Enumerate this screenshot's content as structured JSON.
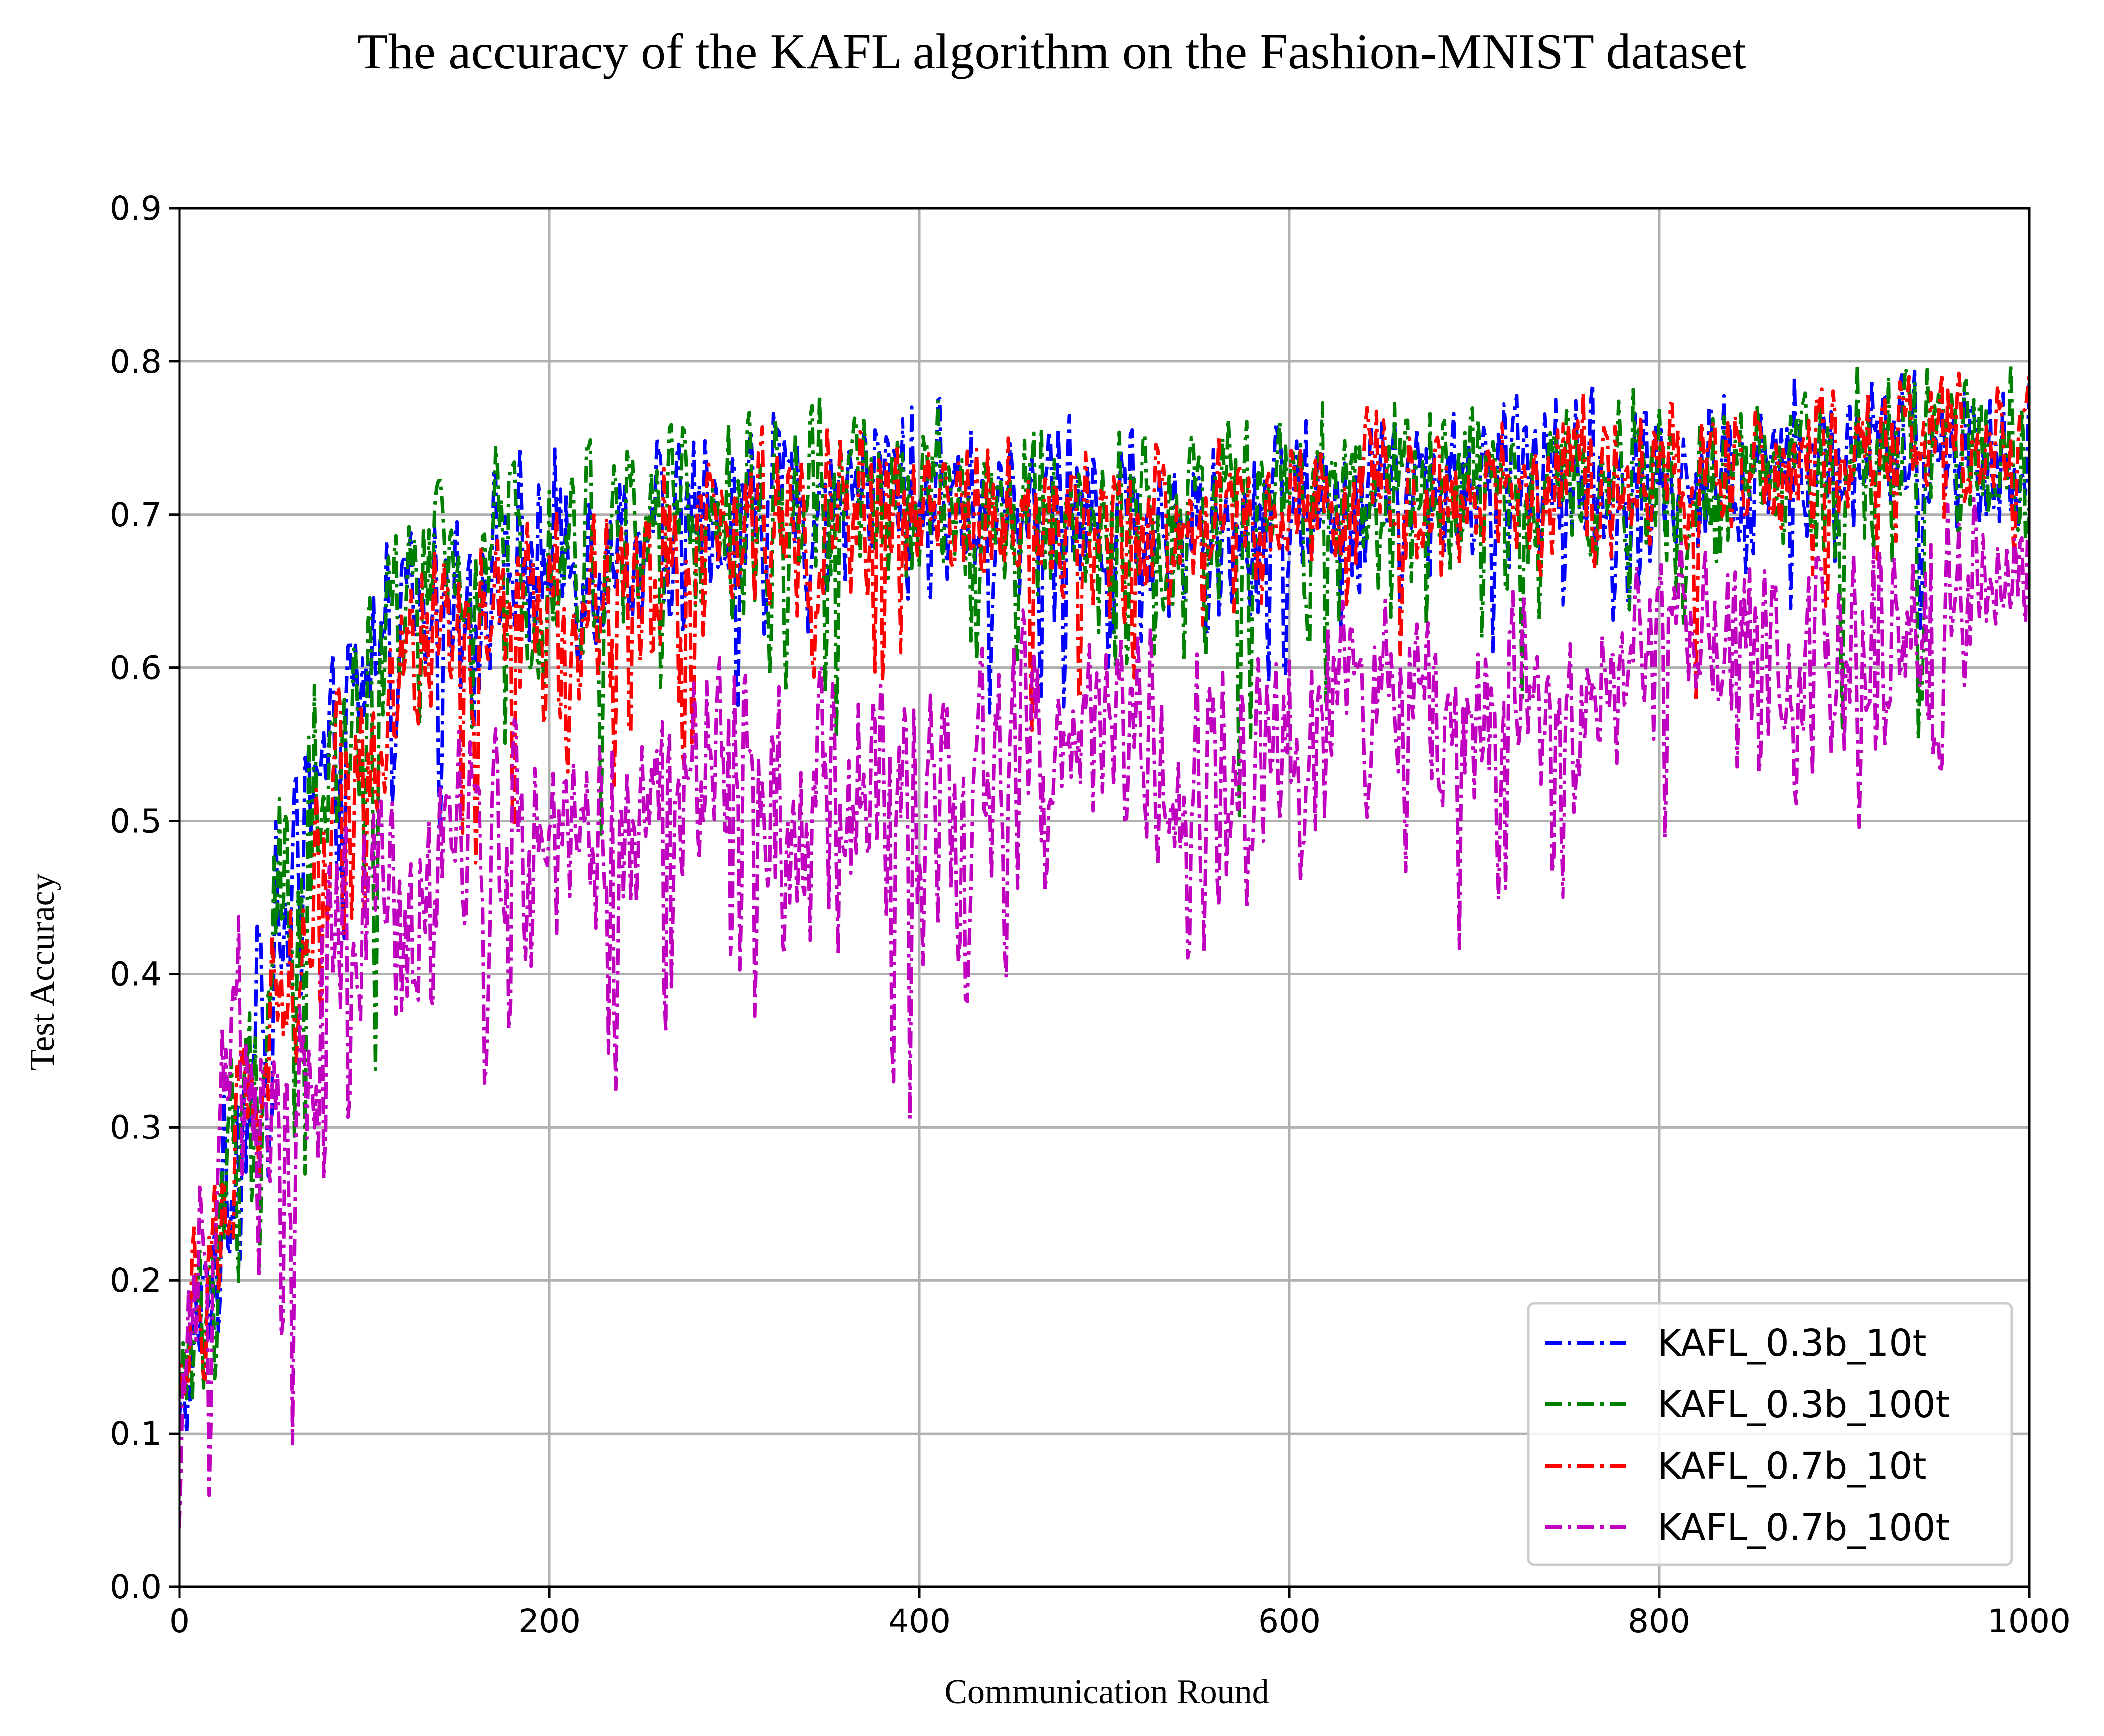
{
  "chart_data": {
    "type": "line",
    "title": "The accuracy of the KAFL algorithm on the Fashion-MNIST dataset",
    "xlabel": "Communication Round",
    "ylabel": "Test Accuracy",
    "xlim": [
      0,
      1000
    ],
    "ylim": [
      0.0,
      0.9
    ],
    "xticks": [
      "0",
      "200",
      "400",
      "600",
      "800",
      "1000"
    ],
    "yticks": [
      "0.0",
      "0.1",
      "0.2",
      "0.3",
      "0.4",
      "0.5",
      "0.6",
      "0.7",
      "0.8",
      "0.9"
    ],
    "grid": true,
    "legend_position": "lower-right",
    "line_style": "dash-dot",
    "series": [
      {
        "name": "KAFL_0.3b_10t",
        "color": "#0000ff",
        "x": [
          0,
          10,
          20,
          30,
          45,
          60,
          80,
          100,
          120,
          140,
          160,
          180,
          200,
          230,
          260,
          300,
          340,
          380,
          420,
          460,
          500,
          550,
          600,
          650,
          700,
          750,
          800,
          850,
          900,
          950,
          1000
        ],
        "values": [
          0.1,
          0.16,
          0.22,
          0.29,
          0.38,
          0.44,
          0.52,
          0.59,
          0.66,
          0.66,
          0.65,
          0.67,
          0.67,
          0.68,
          0.69,
          0.7,
          0.71,
          0.72,
          0.71,
          0.71,
          0.7,
          0.7,
          0.71,
          0.72,
          0.72,
          0.73,
          0.73,
          0.73,
          0.74,
          0.74,
          0.74
        ],
        "spread": [
          0.04,
          0.06,
          0.08,
          0.1,
          0.1,
          0.1,
          0.09,
          0.09,
          0.07,
          0.07,
          0.08,
          0.08,
          0.09,
          0.08,
          0.07,
          0.07,
          0.07,
          0.07,
          0.07,
          0.07,
          0.07,
          0.07,
          0.07,
          0.06,
          0.06,
          0.06,
          0.06,
          0.06,
          0.06,
          0.06,
          0.06
        ]
      },
      {
        "name": "KAFL_0.3b_100t",
        "color": "#008000",
        "x": [
          0,
          10,
          20,
          30,
          45,
          60,
          80,
          100,
          120,
          140,
          160,
          180,
          200,
          230,
          260,
          300,
          340,
          380,
          420,
          460,
          500,
          550,
          600,
          650,
          700,
          750,
          800,
          850,
          900,
          950,
          1000
        ],
        "values": [
          0.12,
          0.17,
          0.23,
          0.3,
          0.38,
          0.45,
          0.52,
          0.58,
          0.63,
          0.66,
          0.67,
          0.67,
          0.67,
          0.68,
          0.69,
          0.7,
          0.71,
          0.71,
          0.71,
          0.7,
          0.7,
          0.7,
          0.71,
          0.71,
          0.72,
          0.72,
          0.73,
          0.72,
          0.73,
          0.74,
          0.73
        ],
        "spread": [
          0.04,
          0.06,
          0.08,
          0.1,
          0.1,
          0.1,
          0.09,
          0.09,
          0.08,
          0.08,
          0.08,
          0.08,
          0.09,
          0.08,
          0.08,
          0.07,
          0.08,
          0.07,
          0.07,
          0.07,
          0.07,
          0.08,
          0.07,
          0.07,
          0.07,
          0.07,
          0.07,
          0.07,
          0.07,
          0.07,
          0.08
        ]
      },
      {
        "name": "KAFL_0.7b_10t",
        "color": "#ff0000",
        "x": [
          0,
          10,
          20,
          30,
          45,
          60,
          80,
          100,
          120,
          140,
          160,
          180,
          200,
          230,
          260,
          300,
          340,
          380,
          420,
          460,
          500,
          550,
          600,
          650,
          700,
          750,
          800,
          850,
          900,
          950,
          1000
        ],
        "values": [
          0.13,
          0.19,
          0.24,
          0.28,
          0.34,
          0.4,
          0.5,
          0.56,
          0.59,
          0.62,
          0.61,
          0.62,
          0.63,
          0.65,
          0.67,
          0.69,
          0.7,
          0.7,
          0.71,
          0.7,
          0.69,
          0.7,
          0.71,
          0.72,
          0.72,
          0.73,
          0.73,
          0.73,
          0.74,
          0.75,
          0.75
        ],
        "spread": [
          0.05,
          0.07,
          0.08,
          0.09,
          0.09,
          0.09,
          0.09,
          0.09,
          0.08,
          0.08,
          0.09,
          0.09,
          0.08,
          0.08,
          0.07,
          0.07,
          0.07,
          0.07,
          0.06,
          0.07,
          0.07,
          0.06,
          0.06,
          0.06,
          0.06,
          0.06,
          0.06,
          0.06,
          0.05,
          0.05,
          0.05
        ]
      },
      {
        "name": "KAFL_0.7b_100t",
        "color": "#bf00bf",
        "x": [
          0,
          10,
          20,
          30,
          45,
          60,
          80,
          100,
          120,
          140,
          160,
          180,
          200,
          230,
          260,
          300,
          340,
          380,
          420,
          460,
          500,
          550,
          600,
          650,
          700,
          750,
          800,
          850,
          900,
          950,
          1000
        ],
        "values": [
          0.08,
          0.2,
          0.3,
          0.36,
          0.33,
          0.3,
          0.38,
          0.46,
          0.45,
          0.48,
          0.5,
          0.49,
          0.48,
          0.5,
          0.52,
          0.54,
          0.5,
          0.52,
          0.5,
          0.55,
          0.58,
          0.52,
          0.55,
          0.58,
          0.57,
          0.58,
          0.63,
          0.62,
          0.6,
          0.64,
          0.67
        ],
        "spread": [
          0.05,
          0.08,
          0.09,
          0.1,
          0.1,
          0.1,
          0.1,
          0.1,
          0.1,
          0.09,
          0.09,
          0.09,
          0.09,
          0.09,
          0.09,
          0.09,
          0.12,
          0.11,
          0.12,
          0.1,
          0.08,
          0.1,
          0.1,
          0.08,
          0.08,
          0.09,
          0.07,
          0.08,
          0.08,
          0.07,
          0.06
        ]
      }
    ]
  }
}
